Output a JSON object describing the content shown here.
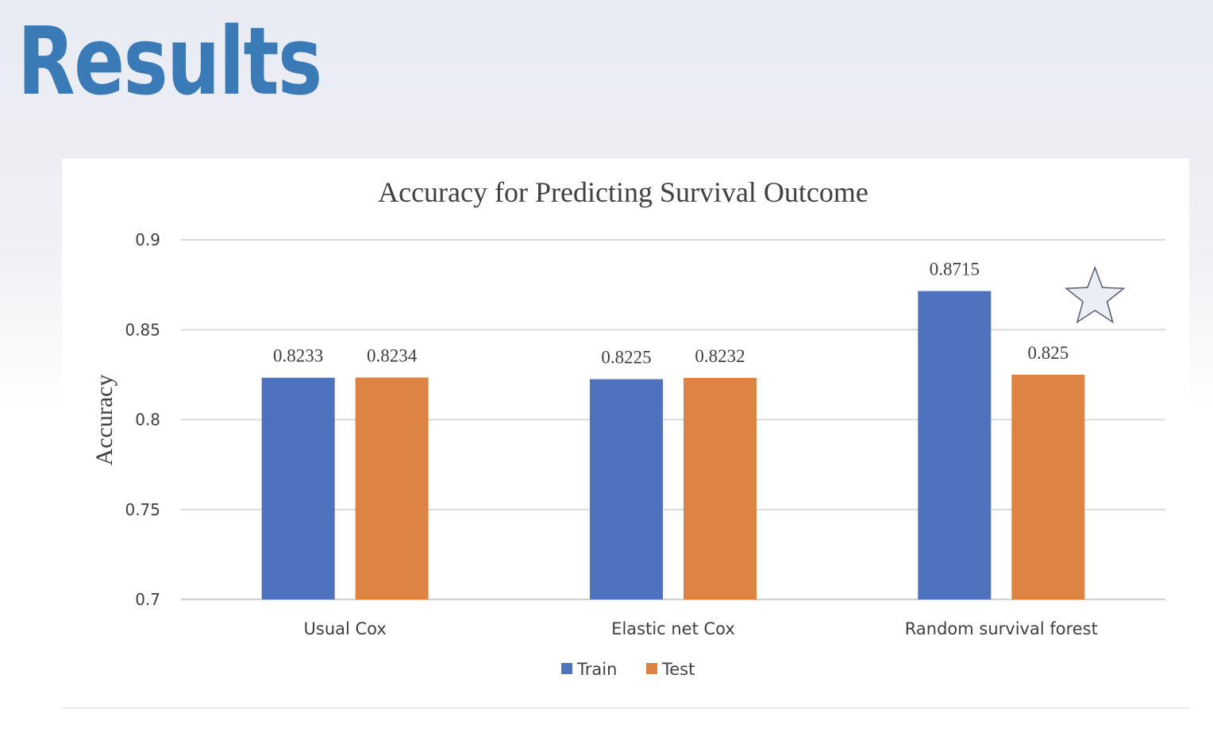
{
  "slide": {
    "title": "Results"
  },
  "chart_data": {
    "type": "bar",
    "title": "Accuracy for Predicting Survival Outcome",
    "xlabel": "",
    "ylabel": "Accuracy",
    "ylim": [
      0.7,
      0.9
    ],
    "yticks": [
      "0.7",
      "0.75",
      "0.8",
      "0.85",
      "0.9"
    ],
    "categories": [
      "Usual Cox",
      "Elastic net Cox",
      "Random survival forest"
    ],
    "series": [
      {
        "name": "Train",
        "color": "#4f72be",
        "values": [
          0.8233,
          0.8225,
          0.8715
        ],
        "labels": [
          "0.8233",
          "0.8225",
          "0.8715"
        ]
      },
      {
        "name": "Test",
        "color": "#dd8344",
        "values": [
          0.8234,
          0.8232,
          0.825
        ],
        "labels": [
          "0.8234",
          "0.8232",
          "0.825"
        ]
      }
    ],
    "grid": true,
    "legend_position": "bottom",
    "annotation": {
      "icon": "star-icon",
      "category": "Random survival forest"
    }
  }
}
